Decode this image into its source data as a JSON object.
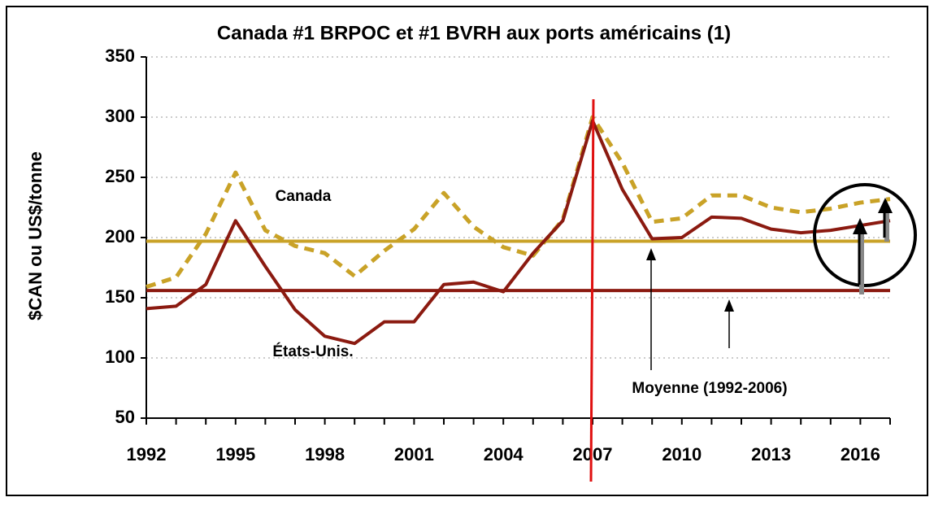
{
  "chart_data": {
    "type": "line",
    "title": "Canada #1 BRPOC et #1 BVRH aux ports américains (1)",
    "y_label": "$CAN ou US$/tonne",
    "x": [
      1992,
      1993,
      1994,
      1995,
      1996,
      1997,
      1998,
      1999,
      2000,
      2001,
      2002,
      2003,
      2004,
      2005,
      2006,
      2007,
      2008,
      2009,
      2010,
      2011,
      2012,
      2013,
      2014,
      2015,
      2016,
      2017
    ],
    "series": [
      {
        "name": "Canada",
        "color": "#c9a227",
        "dashed": true,
        "values": [
          159,
          167,
          203,
          254,
          206,
          193,
          187,
          168,
          189,
          207,
          237,
          209,
          192,
          185,
          215,
          300,
          262,
          213,
          216,
          235,
          235,
          225,
          221,
          224,
          229,
          232
        ]
      },
      {
        "name": "États-Unis.",
        "color": "#8b1a10",
        "dashed": false,
        "values": [
          141,
          143,
          161,
          214,
          176,
          140,
          118,
          112,
          130,
          130,
          161,
          163,
          155,
          187,
          214,
          297,
          240,
          199,
          200,
          217,
          216,
          207,
          204,
          206,
          210,
          214
        ]
      }
    ],
    "average_lines": [
      {
        "color": "#c9a227",
        "value": 197
      },
      {
        "color": "#8b1a10",
        "value": 156
      }
    ],
    "average_label": "Moyenne (1992-2006)",
    "xlim": [
      1992,
      2017
    ],
    "xticks": [
      1992,
      1995,
      1998,
      2001,
      2004,
      2007,
      2010,
      2013,
      2016
    ],
    "ylim": [
      50,
      350
    ],
    "yticks": [
      50,
      100,
      150,
      200,
      250,
      300,
      350
    ],
    "grid": true
  }
}
